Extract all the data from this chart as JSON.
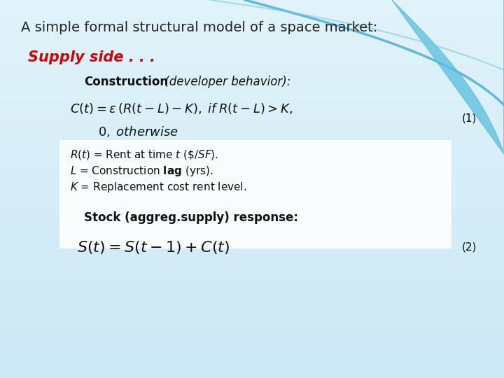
{
  "title": "A simple formal structural model of a space market:",
  "supply_side": "Supply side . . .",
  "construction_label": "Construction",
  "construction_italic": " (developer behavior):",
  "eq1_line1": "$C(t) = \\varepsilon\\,(R(t-L)-K),\\; if\\; R(t-L) > K,$",
  "eq1_line2": "$0,\\; otherwise$",
  "note1": "$R(t)$ = Rent at time $t$ ($/SF).",
  "note2": "$L$ = Construction $\\mathbf{lag}$ (yrs).",
  "note3": "$K$ = Replacement cost rent level.",
  "stock_label": "Stock (aggreg.supply) response:",
  "eq2": "$S(t) = S(t-1) + C(t)$",
  "eq1_number": "(1)",
  "eq2_number": "(2)",
  "bg_color_top": "#cce8f4",
  "bg_color_bottom": "#e8f4fb",
  "title_color": "#222222",
  "supply_color": "#cc0000",
  "text_color": "#111111",
  "curve_color": "#5ab8e0",
  "eq_box_color": "#ffffff"
}
